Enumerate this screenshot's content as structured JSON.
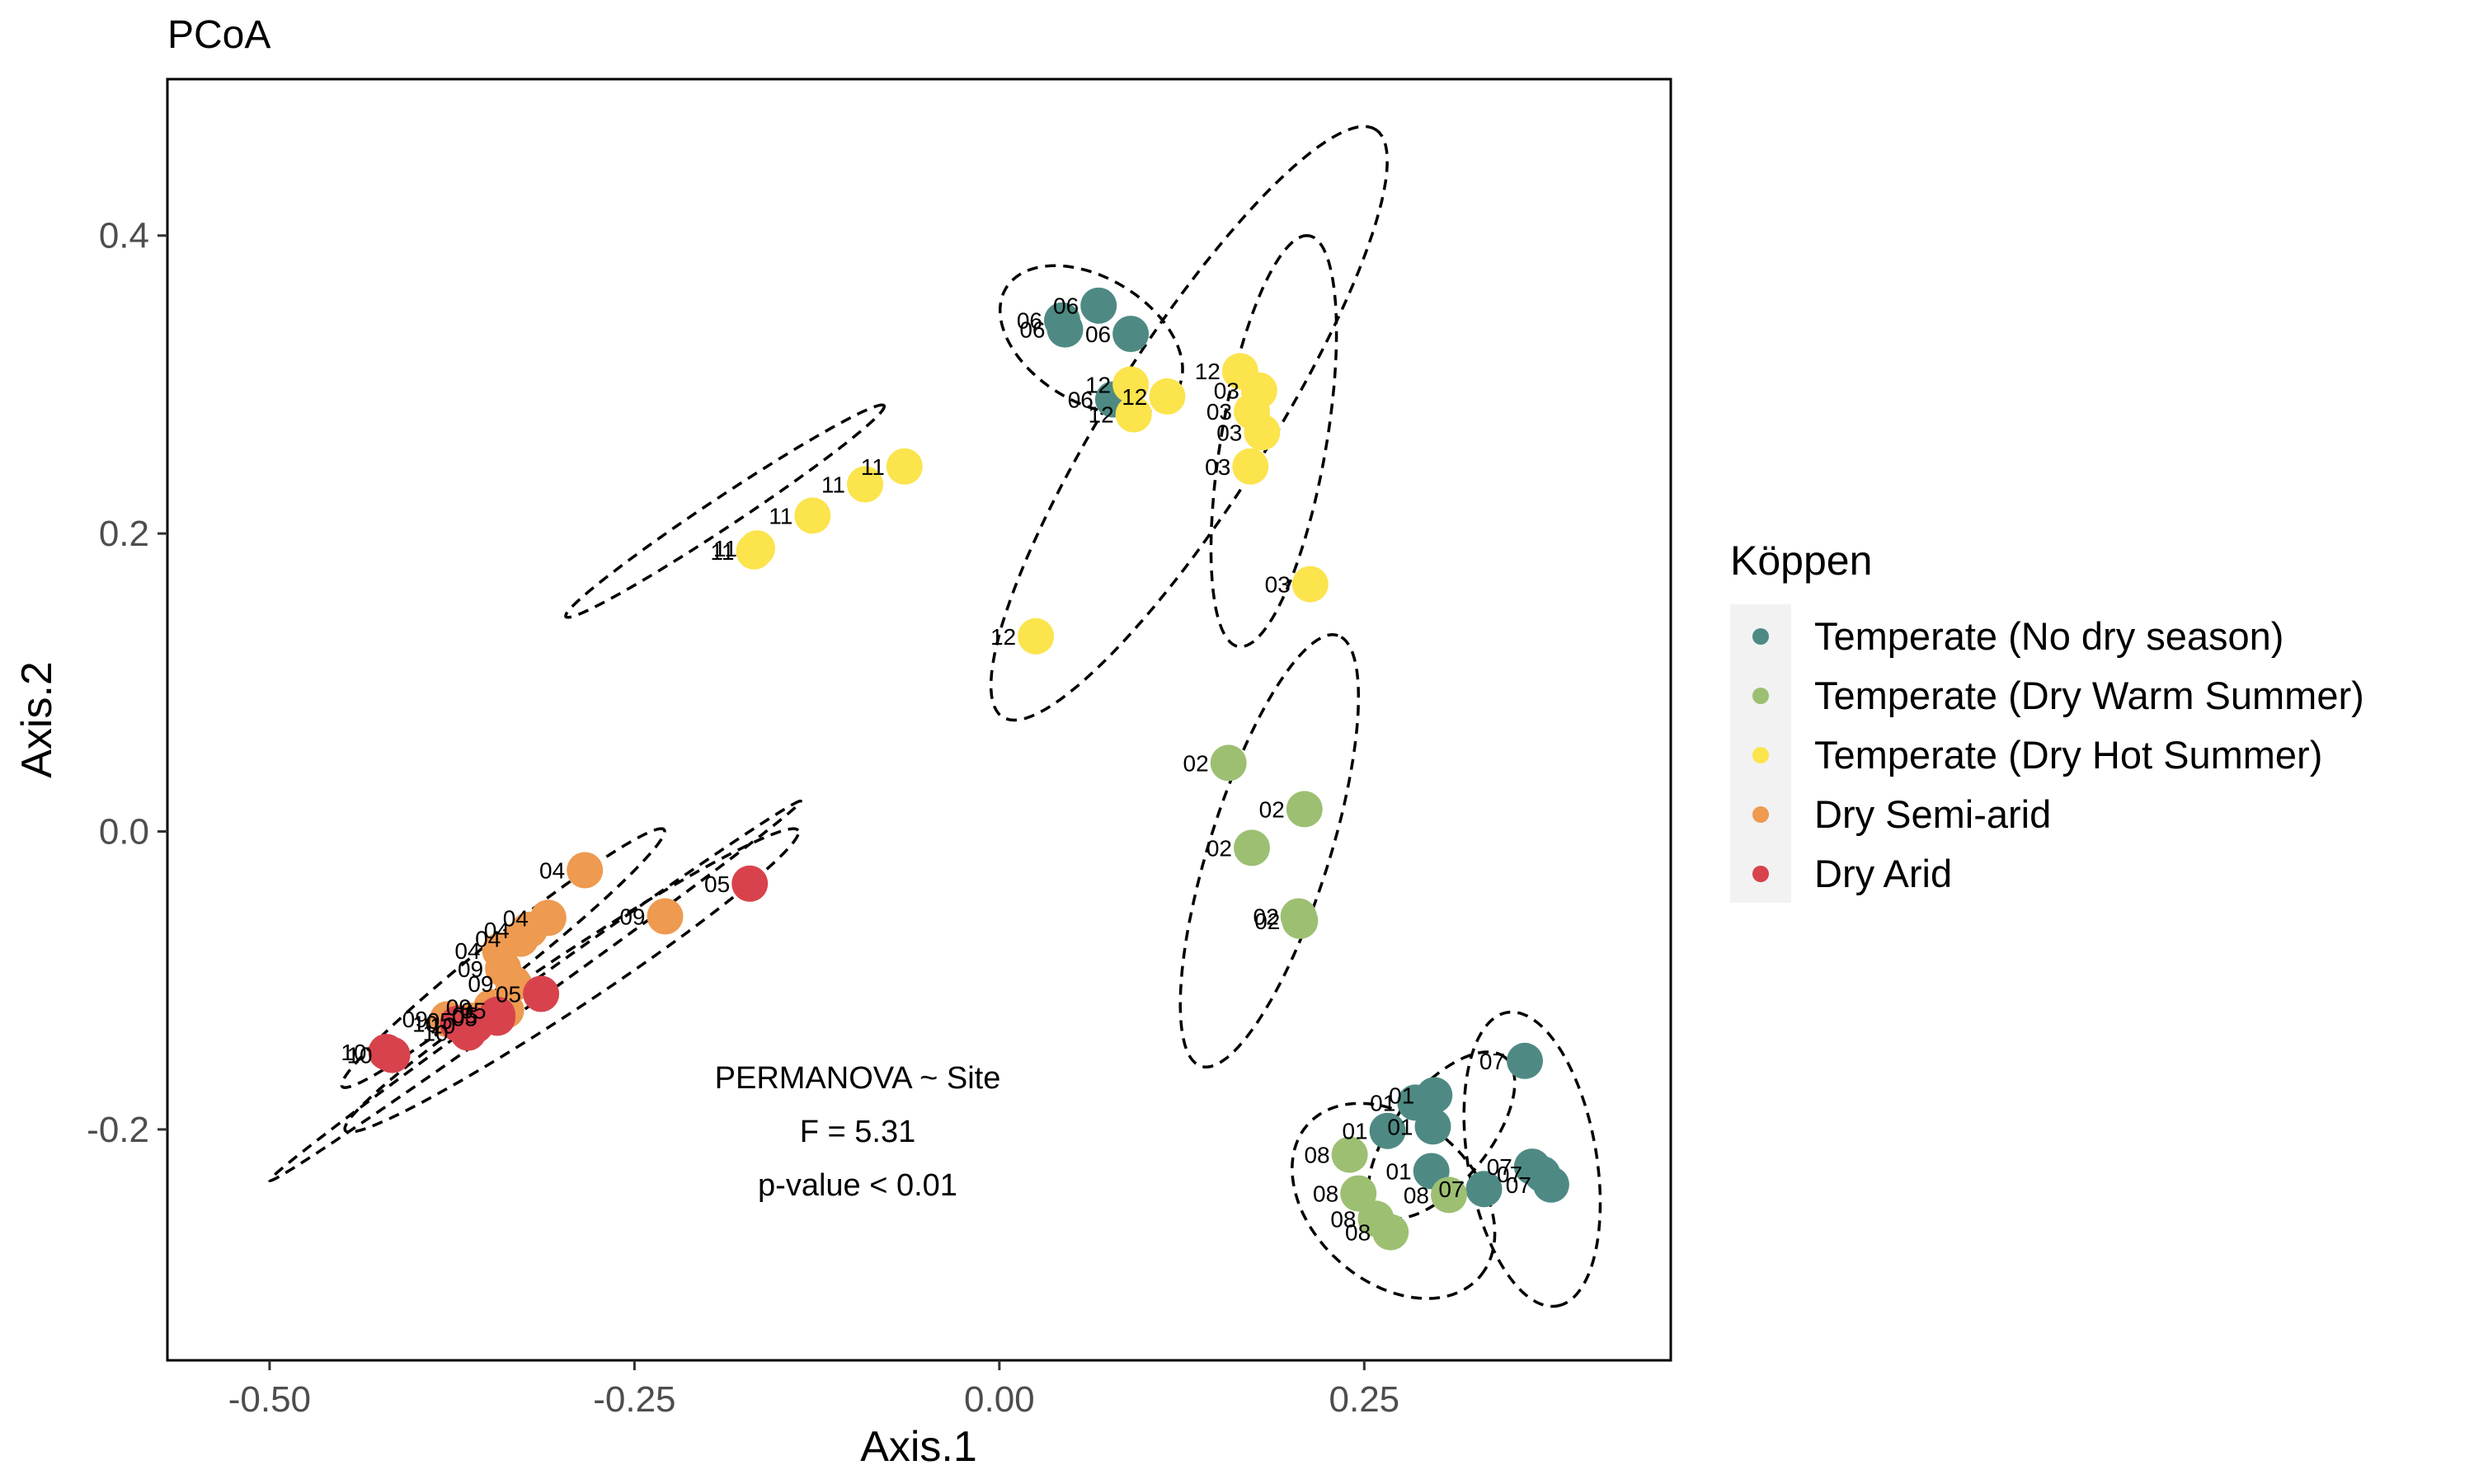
{
  "chart_data": {
    "type": "scatter",
    "title": "PCoA",
    "xlabel": "Axis.1",
    "ylabel": "Axis.2",
    "xlim": [
      -0.57,
      0.46
    ],
    "ylim": [
      -0.355,
      0.505
    ],
    "x_ticks": [
      {
        "value": -0.5,
        "label": "-0.50"
      },
      {
        "value": -0.25,
        "label": "-0.25"
      },
      {
        "value": 0.0,
        "label": "0.00"
      },
      {
        "value": 0.25,
        "label": "0.25"
      }
    ],
    "y_ticks": [
      {
        "value": -0.2,
        "label": "-0.2"
      },
      {
        "value": 0.0,
        "label": "0.0"
      },
      {
        "value": 0.2,
        "label": "0.2"
      },
      {
        "value": 0.4,
        "label": "0.4"
      }
    ],
    "grid": false,
    "legend": {
      "title": "Köppen",
      "placement": "right",
      "entries": [
        {
          "label": "Temperate (No dry season)",
          "color": "#4E8A83"
        },
        {
          "label": "Temperate (Dry Warm Summer)",
          "color": "#9DBF72"
        },
        {
          "label": "Temperate (Dry Hot Summer)",
          "color": "#FBE44C"
        },
        {
          "label": "Dry Semi-arid",
          "color": "#EE9A50"
        },
        {
          "label": "Dry Arid",
          "color": "#D8424C"
        }
      ]
    },
    "annotation": [
      "PERMANOVA ~ Site",
      "F = 5.31",
      "p-value < 0.01"
    ],
    "points": [
      {
        "x": 0.043,
        "y": 0.343,
        "label": "06",
        "group": 0
      },
      {
        "x": 0.068,
        "y": 0.353,
        "label": "06",
        "group": 0
      },
      {
        "x": 0.09,
        "y": 0.334,
        "label": "06",
        "group": 0
      },
      {
        "x": 0.045,
        "y": 0.337,
        "label": "06",
        "group": 0
      },
      {
        "x": 0.078,
        "y": 0.29,
        "label": "06",
        "group": 0
      },
      {
        "x": 0.36,
        "y": -0.154,
        "label": "07",
        "group": 0
      },
      {
        "x": 0.365,
        "y": -0.225,
        "label": "07",
        "group": 0
      },
      {
        "x": 0.372,
        "y": -0.23,
        "label": "07",
        "group": 0
      },
      {
        "x": 0.378,
        "y": -0.237,
        "label": "07",
        "group": 0
      },
      {
        "x": 0.332,
        "y": -0.24,
        "label": "07",
        "group": 0
      },
      {
        "x": 0.285,
        "y": -0.182,
        "label": "01",
        "group": 0
      },
      {
        "x": 0.298,
        "y": -0.177,
        "label": "01",
        "group": 0
      },
      {
        "x": 0.297,
        "y": -0.198,
        "label": "01",
        "group": 0
      },
      {
        "x": 0.266,
        "y": -0.201,
        "label": "01",
        "group": 0
      },
      {
        "x": 0.296,
        "y": -0.228,
        "label": "01",
        "group": 0
      },
      {
        "x": 0.157,
        "y": 0.046,
        "label": "02",
        "group": 1
      },
      {
        "x": 0.209,
        "y": 0.015,
        "label": "02",
        "group": 1
      },
      {
        "x": 0.173,
        "y": -0.011,
        "label": "02",
        "group": 1
      },
      {
        "x": 0.205,
        "y": -0.057,
        "label": "02",
        "group": 1
      },
      {
        "x": 0.206,
        "y": -0.06,
        "label": "02",
        "group": 1
      },
      {
        "x": 0.24,
        "y": -0.217,
        "label": "08",
        "group": 1
      },
      {
        "x": 0.246,
        "y": -0.243,
        "label": "08",
        "group": 1
      },
      {
        "x": 0.258,
        "y": -0.26,
        "label": "08",
        "group": 1
      },
      {
        "x": 0.268,
        "y": -0.269,
        "label": "08",
        "group": 1
      },
      {
        "x": 0.308,
        "y": -0.244,
        "label": "08",
        "group": 1
      },
      {
        "x": 0.09,
        "y": 0.3,
        "label": "12",
        "group": 2
      },
      {
        "x": 0.092,
        "y": 0.28,
        "label": "12",
        "group": 2
      },
      {
        "x": 0.115,
        "y": 0.292,
        "label": "12",
        "group": 2
      },
      {
        "x": 0.025,
        "y": 0.131,
        "label": "12",
        "group": 2
      },
      {
        "x": 0.165,
        "y": 0.309,
        "label": "12",
        "group": 2
      },
      {
        "x": 0.178,
        "y": 0.296,
        "label": "03",
        "group": 2
      },
      {
        "x": 0.173,
        "y": 0.282,
        "label": "03",
        "group": 2
      },
      {
        "x": 0.18,
        "y": 0.268,
        "label": "03",
        "group": 2
      },
      {
        "x": 0.172,
        "y": 0.245,
        "label": "03",
        "group": 2
      },
      {
        "x": 0.213,
        "y": 0.166,
        "label": "03",
        "group": 2
      },
      {
        "x": -0.065,
        "y": 0.245,
        "label": "11",
        "group": 2
      },
      {
        "x": -0.092,
        "y": 0.233,
        "label": "11",
        "group": 2
      },
      {
        "x": -0.128,
        "y": 0.212,
        "label": "11",
        "group": 2
      },
      {
        "x": -0.166,
        "y": 0.19,
        "label": "11",
        "group": 2
      },
      {
        "x": -0.168,
        "y": 0.188,
        "label": "11",
        "group": 2
      },
      {
        "x": -0.284,
        "y": -0.026,
        "label": "04",
        "group": 3
      },
      {
        "x": -0.309,
        "y": -0.058,
        "label": "04",
        "group": 3
      },
      {
        "x": -0.322,
        "y": -0.066,
        "label": "04",
        "group": 3
      },
      {
        "x": -0.328,
        "y": -0.072,
        "label": "04",
        "group": 3
      },
      {
        "x": -0.342,
        "y": -0.08,
        "label": "04",
        "group": 3
      },
      {
        "x": -0.229,
        "y": -0.057,
        "label": "09",
        "group": 3
      },
      {
        "x": -0.34,
        "y": -0.092,
        "label": "09",
        "group": 3
      },
      {
        "x": -0.333,
        "y": -0.102,
        "label": "09",
        "group": 3
      },
      {
        "x": -0.348,
        "y": -0.118,
        "label": "09",
        "group": 3
      },
      {
        "x": -0.378,
        "y": -0.126,
        "label": "09",
        "group": 3
      },
      {
        "x": -0.361,
        "y": -0.127,
        "label": "05",
        "group": 3
      },
      {
        "x": -0.338,
        "y": -0.12,
        "label": "05",
        "group": 3
      },
      {
        "x": -0.171,
        "y": -0.035,
        "label": "05",
        "group": 4
      },
      {
        "x": -0.314,
        "y": -0.109,
        "label": "05",
        "group": 4
      },
      {
        "x": -0.344,
        "y": -0.125,
        "label": "05",
        "group": 4
      },
      {
        "x": -0.344,
        "y": -0.123,
        "label": "05",
        "group": 4
      },
      {
        "x": -0.359,
        "y": -0.13,
        "label": "10",
        "group": 4
      },
      {
        "x": -0.364,
        "y": -0.135,
        "label": "10",
        "group": 4
      },
      {
        "x": -0.371,
        "y": -0.129,
        "label": "10",
        "group": 4
      },
      {
        "x": -0.416,
        "y": -0.15,
        "label": "10",
        "group": 4
      },
      {
        "x": -0.42,
        "y": -0.148,
        "label": "10",
        "group": 4
      }
    ],
    "ellipses": [
      {
        "cx": 0.063,
        "cy": 0.33,
        "rx": 0.068,
        "ry": 0.042,
        "angle": -30
      },
      {
        "cx": 0.13,
        "cy": 0.274,
        "rx": 0.235,
        "ry": 0.054,
        "angle": 57
      },
      {
        "cx": 0.188,
        "cy": 0.262,
        "rx": 0.14,
        "ry": 0.036,
        "angle": 80
      },
      {
        "cx": -0.188,
        "cy": 0.215,
        "rx": 0.13,
        "ry": 0.01,
        "angle": 33
      },
      {
        "cx": 0.185,
        "cy": -0.013,
        "rx": 0.152,
        "ry": 0.041,
        "angle": 72
      },
      {
        "cx": 0.303,
        "cy": -0.204,
        "rx": 0.068,
        "ry": 0.032,
        "angle": 50
      },
      {
        "cx": 0.27,
        "cy": -0.248,
        "rx": 0.078,
        "ry": 0.055,
        "angle": -40
      },
      {
        "cx": 0.365,
        "cy": -0.22,
        "rx": 0.1,
        "ry": 0.044,
        "angle": -80
      },
      {
        "cx": -0.34,
        "cy": -0.085,
        "rx": 0.14,
        "ry": 0.014,
        "angle": 38
      },
      {
        "cx": -0.293,
        "cy": -0.1,
        "rx": 0.185,
        "ry": 0.018,
        "angle": 33
      },
      {
        "cx": -0.318,
        "cy": -0.107,
        "rx": 0.222,
        "ry": 0.006,
        "angle": 35
      }
    ]
  }
}
